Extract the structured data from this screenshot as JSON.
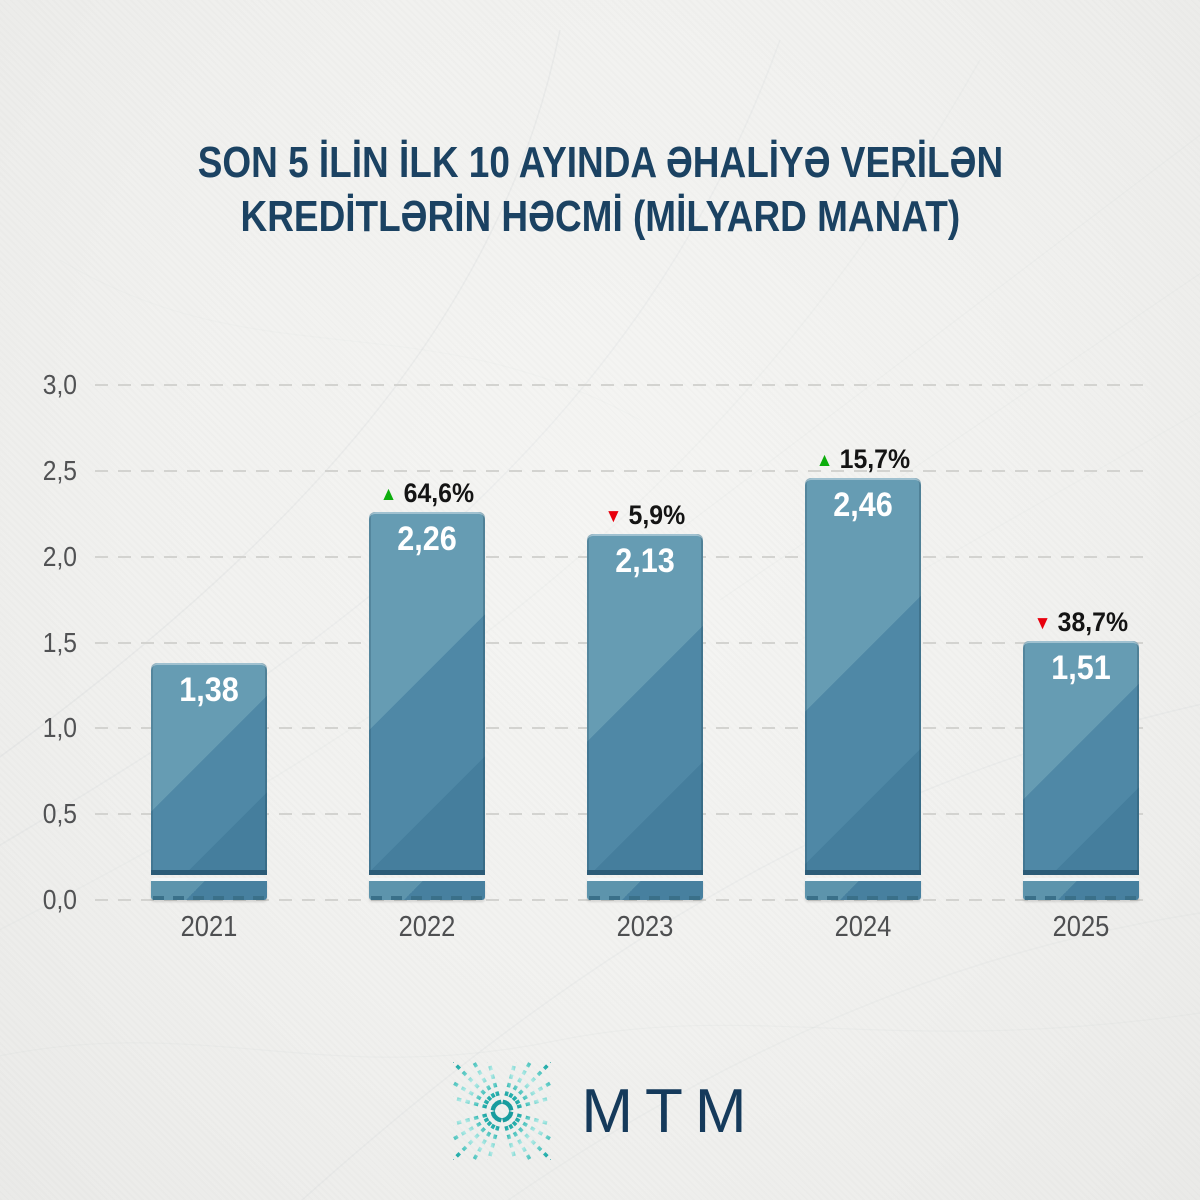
{
  "title": {
    "line1": "SON 5 İLİN İLK 10 AYINDA ƏHALİYƏ VERİLƏN",
    "line2": "KREDİTLƏRİN HƏCMİ (MİLYARD MANAT)"
  },
  "chart_data": {
    "type": "bar",
    "title": "SON 5 İLİN İLK 10 AYINDA ƏHALİYƏ VERİLƏN KREDİTLƏRİN HƏCMİ (MİLYARD MANAT)",
    "categories": [
      "2021",
      "2022",
      "2023",
      "2024",
      "2025"
    ],
    "values": [
      1.38,
      2.26,
      2.13,
      2.46,
      1.51
    ],
    "value_labels": [
      "1,38",
      "2,26",
      "2,13",
      "2,46",
      "1,51"
    ],
    "changes": [
      null,
      {
        "symbol": "▲",
        "label": "64,6%",
        "direction": "up"
      },
      {
        "symbol": "▼",
        "label": "5,9%",
        "direction": "down"
      },
      {
        "symbol": "▲",
        "label": "15,7%",
        "direction": "up"
      },
      {
        "symbol": "▼",
        "label": "38,7%",
        "direction": "down"
      }
    ],
    "ylim": [
      0,
      3
    ],
    "ytick_labels": [
      "3,0",
      "2,5",
      "2,0",
      "1,5",
      "1,0",
      "0,5",
      "0,0"
    ],
    "ytick_values": [
      3.0,
      2.5,
      2.0,
      1.5,
      1.0,
      0.5,
      0.0
    ],
    "grid": "dashed horizontal, legend none"
  },
  "logo": {
    "text": "MTM",
    "icon": "starburst-dots-icon"
  },
  "colors": {
    "bar": "#4f88a6",
    "bar_highlight": "#669cb3",
    "bar_dark": "#2b5b77",
    "title": "#1b4262",
    "axis_text": "#515254",
    "up": "#0cad0c",
    "down": "#e8000d",
    "logo_teal": "#1fa9a6",
    "logo_navy": "#153a5b",
    "background": "#f1f1ef"
  }
}
